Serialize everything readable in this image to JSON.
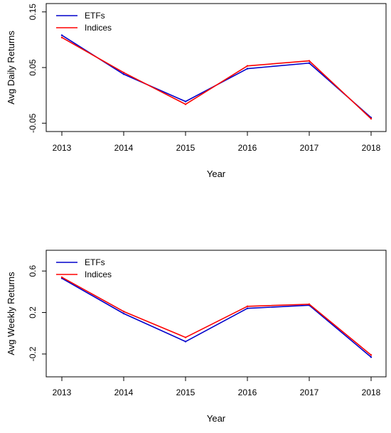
{
  "chart_data": [
    {
      "type": "line",
      "xlabel": "Year",
      "ylabel": "Avg Daily Returns",
      "categories": [
        "2013",
        "2014",
        "2015",
        "2016",
        "2017",
        "2018"
      ],
      "ylim": [
        -0.065,
        0.165
      ],
      "yticks": [
        -0.05,
        0.05,
        0.15
      ],
      "ytick_labels": [
        "-0.05",
        "0.05",
        "0.15"
      ],
      "legend_position": "top-left",
      "grid": false,
      "series": [
        {
          "name": "ETFs",
          "color": "#0000cc",
          "values": [
            0.108,
            0.038,
            -0.011,
            0.048,
            0.058,
            -0.04
          ]
        },
        {
          "name": "Indices",
          "color": "#ff0000",
          "values": [
            0.104,
            0.041,
            -0.016,
            0.053,
            0.062,
            -0.042
          ]
        }
      ]
    },
    {
      "type": "line",
      "xlabel": "Year",
      "ylabel": "Avg Weekly Returns",
      "categories": [
        "2013",
        "2014",
        "2015",
        "2016",
        "2017",
        "2018"
      ],
      "ylim": [
        -0.42,
        0.8
      ],
      "yticks": [
        -0.2,
        0.2,
        0.6
      ],
      "ytick_labels": [
        "-0.2",
        "0.2",
        "0.6"
      ],
      "legend_position": "top-left",
      "grid": false,
      "series": [
        {
          "name": "ETFs",
          "color": "#0000cc",
          "values": [
            0.53,
            0.19,
            -0.08,
            0.24,
            0.27,
            -0.23
          ]
        },
        {
          "name": "Indices",
          "color": "#ff0000",
          "values": [
            0.54,
            0.21,
            -0.04,
            0.26,
            0.28,
            -0.21
          ]
        }
      ]
    }
  ]
}
